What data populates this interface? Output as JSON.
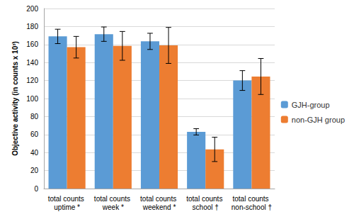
{
  "chart_data": {
    "type": "bar",
    "y_label": "Objective activity (in counts x 10³)",
    "categories": [
      "total counts uptime *",
      "total counts week *",
      "total counts weekend *",
      "total counts school †",
      "total counts non-school †"
    ],
    "series": [
      {
        "name": "GJH-group",
        "color": "#5b9bd5",
        "values": [
          169,
          171.5,
          163.5,
          63,
          120
        ],
        "errors": [
          8,
          8,
          9,
          3.5,
          11
        ]
      },
      {
        "name": "non-GJH group",
        "color": "#ed7d31",
        "values": [
          157,
          158.5,
          159,
          43.5,
          124.5
        ],
        "errors": [
          12,
          16,
          20,
          13.5,
          20
        ]
      }
    ],
    "ylim": [
      0,
      200
    ],
    "yticks": [
      0,
      20,
      40,
      60,
      80,
      100,
      120,
      140,
      160,
      180,
      200
    ],
    "grid": true,
    "legend": "right"
  }
}
